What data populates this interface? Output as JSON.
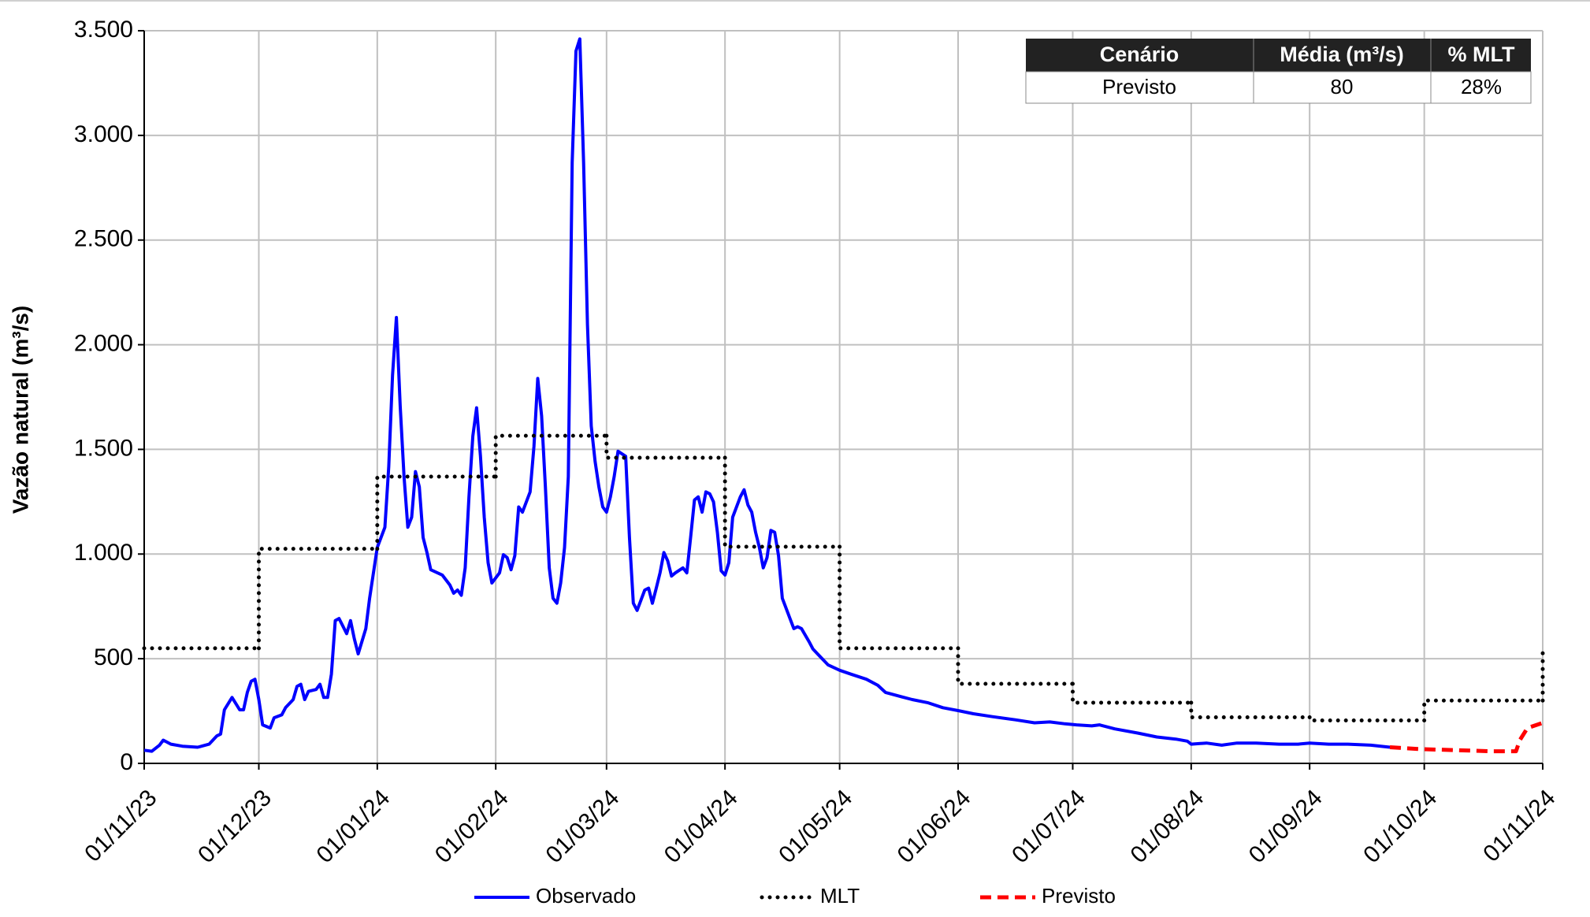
{
  "chart_data": {
    "type": "line",
    "y_label": "Vazão natural (m³/s)",
    "xlim": [
      "01/11/23",
      "01/11/24"
    ],
    "xticks": [
      "01/11/23",
      "01/12/23",
      "01/01/24",
      "01/02/24",
      "01/03/24",
      "01/04/24",
      "01/05/24",
      "01/06/24",
      "01/07/24",
      "01/08/24",
      "01/09/24",
      "01/10/24",
      "01/11/24"
    ],
    "ylim": [
      0,
      3500
    ],
    "yticks": [
      0,
      500,
      {
        "value": 1000,
        "label": "1.000"
      },
      {
        "value": 1500,
        "label": "1.500"
      },
      {
        "value": 2000,
        "label": "2.000"
      },
      {
        "value": 2500,
        "label": "2.500"
      },
      {
        "value": 3000,
        "label": "3.000"
      },
      {
        "value": 3500,
        "label": "3.500"
      }
    ],
    "grid": true,
    "legend": "bottom",
    "series": [
      {
        "name": "Observado",
        "color": "#0000ff",
        "dash": "solid",
        "x": [
          "01/11/23",
          "03/11/23",
          "05/11/23",
          "06/11/23",
          "08/11/23",
          "11/11/23",
          "15/11/23",
          "18/11/23",
          "20/11/23",
          "21/11/23",
          "22/11/23",
          "24/11/23",
          "26/11/23",
          "27/11/23",
          "28/11/23",
          "29/11/23",
          "30/11/23",
          "01/12/23",
          "02/12/23",
          "04/12/23",
          "05/12/23",
          "07/12/23",
          "08/12/23",
          "10/12/23",
          "11/12/23",
          "12/12/23",
          "13/12/23",
          "14/12/23",
          "16/12/23",
          "17/12/23",
          "18/12/23",
          "19/12/23",
          "20/12/23",
          "21/12/23",
          "22/12/23",
          "24/12/23",
          "25/12/23",
          "26/12/23",
          "27/12/23",
          "29/12/23",
          "30/12/23",
          "01/01/24",
          "03/01/24",
          "04/01/24",
          "05/01/24",
          "06/01/24",
          "07/01/24",
          "08/01/24",
          "09/01/24",
          "10/01/24",
          "11/01/24",
          "12/01/24",
          "13/01/24",
          "14/01/24",
          "15/01/24",
          "18/01/24",
          "20/01/24",
          "21/01/24",
          "22/01/24",
          "23/01/24",
          "24/01/24",
          "25/01/24",
          "26/01/24",
          "27/01/24",
          "28/01/24",
          "29/01/24",
          "30/01/24",
          "31/01/24",
          "02/02/24",
          "03/02/24",
          "04/02/24",
          "05/02/24",
          "06/02/24",
          "07/02/24",
          "08/02/24",
          "10/02/24",
          "11/02/24",
          "12/02/24",
          "13/02/24",
          "14/02/24",
          "15/02/24",
          "16/02/24",
          "17/02/24",
          "18/02/24",
          "19/02/24",
          "20/02/24",
          "21/02/24",
          "22/02/24",
          "23/02/24",
          "24/02/24",
          "25/02/24",
          "26/02/24",
          "27/02/24",
          "28/02/24",
          "29/02/24",
          "01/03/24",
          "02/03/24",
          "03/03/24",
          "04/03/24",
          "06/03/24",
          "07/03/24",
          "08/03/24",
          "09/03/24",
          "11/03/24",
          "12/03/24",
          "13/03/24",
          "14/03/24",
          "15/03/24",
          "16/03/24",
          "17/03/24",
          "18/03/24",
          "19/03/24",
          "21/03/24",
          "22/03/24",
          "23/03/24",
          "24/03/24",
          "25/03/24",
          "26/03/24",
          "27/03/24",
          "28/03/24",
          "29/03/24",
          "30/03/24",
          "31/03/24",
          "01/04/24",
          "02/04/24",
          "03/04/24",
          "05/04/24",
          "06/04/24",
          "07/04/24",
          "08/04/24",
          "09/04/24",
          "10/04/24",
          "11/04/24",
          "12/04/24",
          "13/04/24",
          "14/04/24",
          "15/04/24",
          "16/04/24",
          "18/04/24",
          "19/04/24",
          "20/04/24",
          "21/04/24",
          "23/04/24",
          "24/04/24",
          "26/04/24",
          "28/04/24",
          "01/05/24",
          "04/05/24",
          "08/05/24",
          "11/05/24",
          "13/05/24",
          "17/05/24",
          "20/05/24",
          "24/05/24",
          "28/05/24",
          "01/06/24",
          "05/06/24",
          "10/06/24",
          "16/06/24",
          "21/06/24",
          "25/06/24",
          "29/06/24",
          "02/07/24",
          "06/07/24",
          "08/07/24",
          "12/07/24",
          "18/07/24",
          "23/07/24",
          "28/07/24",
          "31/07/24",
          "01/08/24",
          "05/08/24",
          "09/08/24",
          "13/08/24",
          "18/08/24",
          "24/08/24",
          "29/08/24",
          "01/09/24",
          "06/09/24",
          "11/09/24",
          "17/09/24",
          "22/09/24"
        ],
        "values": [
          63,
          58,
          87,
          111,
          92,
          82,
          77,
          92,
          131,
          140,
          256,
          315,
          256,
          256,
          339,
          392,
          402,
          305,
          184,
          169,
          218,
          232,
          266,
          305,
          368,
          378,
          305,
          344,
          353,
          378,
          315,
          315,
          426,
          682,
          692,
          620,
          682,
          595,
          523,
          644,
          789,
          1031,
          1128,
          1418,
          1854,
          2130,
          1709,
          1370,
          1128,
          1176,
          1394,
          1321,
          1079,
          1007,
          925,
          900,
          852,
          813,
          828,
          803,
          934,
          1273,
          1563,
          1699,
          1467,
          1176,
          958,
          862,
          910,
          997,
          983,
          925,
          992,
          1225,
          1200,
          1297,
          1515,
          1839,
          1660,
          1321,
          934,
          789,
          765,
          862,
          1031,
          1370,
          2870,
          3403,
          3461,
          2870,
          2096,
          1612,
          1442,
          1321,
          1225,
          1200,
          1273,
          1370,
          1491,
          1467,
          1079,
          765,
          731,
          828,
          837,
          765,
          837,
          910,
          1007,
          968,
          895,
          910,
          934,
          910,
          1079,
          1258,
          1273,
          1200,
          1297,
          1288,
          1249,
          1104,
          920,
          900,
          958,
          1176,
          1273,
          1307,
          1234,
          1200,
          1104,
          1031,
          934,
          983,
          1113,
          1104,
          992,
          789,
          692,
          644,
          653,
          644,
          581,
          547,
          508,
          470,
          445,
          426,
          402,
          373,
          339,
          319,
          305,
          290,
          266,
          252,
          237,
          223,
          208,
          194,
          198,
          189,
          184,
          179,
          184,
          165,
          145,
          126,
          116,
          106,
          92,
          97,
          87,
          97,
          97,
          92,
          92,
          97,
          92,
          92,
          87,
          77
        ]
      },
      {
        "name": "MLT",
        "color": "#000000",
        "dash": "dotted",
        "step": true,
        "x": [
          "01/11/23",
          "01/12/23",
          "01/01/24",
          "01/02/24",
          "01/03/24",
          "01/04/24",
          "01/05/24",
          "01/06/24",
          "01/07/24",
          "01/08/24",
          "01/09/24",
          "01/10/24",
          "01/11/24"
        ],
        "values": [
          550,
          1025,
          1370,
          1565,
          1460,
          1035,
          550,
          380,
          290,
          220,
          205,
          300,
          550
        ]
      },
      {
        "name": "Previsto",
        "color": "#ff0000",
        "dash": "dashed",
        "x": [
          "22/09/24",
          "30/09/24",
          "10/10/24",
          "18/10/24",
          "25/10/24",
          "26/10/24",
          "28/10/24",
          "01/11/24"
        ],
        "values": [
          77,
          68,
          63,
          58,
          58,
          111,
          169,
          194
        ]
      }
    ]
  },
  "table": {
    "header": [
      "Cenário",
      "Média (m³/s)",
      "% MLT"
    ],
    "rows": [
      [
        "Previsto",
        "80",
        "28%"
      ]
    ]
  }
}
